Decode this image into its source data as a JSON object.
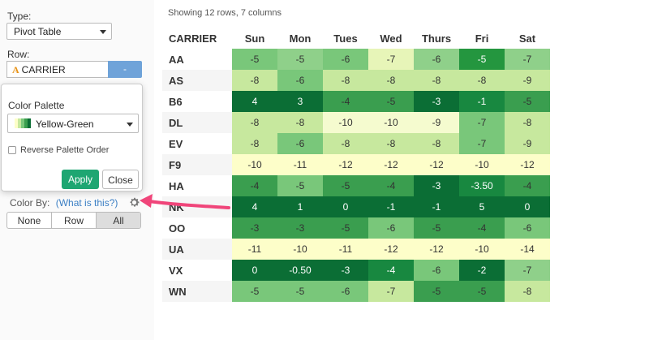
{
  "sidebar": {
    "type_label": "Type:",
    "type_value": "Pivot Table",
    "row_label": "Row:",
    "row_field_icon": "A",
    "row_field_value": "CARRIER",
    "row_remove_label": "-",
    "palette": {
      "title": "Color Palette",
      "selected": "Yellow-Green",
      "reverse_label": "Reverse Palette Order",
      "reverse_checked": false,
      "apply_label": "Apply",
      "close_label": "Close"
    },
    "color_by_label": "Color By:",
    "color_by_help": "(What is this?)",
    "color_by_options": [
      "None",
      "Row",
      "All"
    ],
    "color_by_selected": "All"
  },
  "main": {
    "status": "Showing 12 rows, 7 columns",
    "columns": [
      "CARRIER",
      "Sun",
      "Mon",
      "Tues",
      "Wed",
      "Thurs",
      "Fri",
      "Sat"
    ],
    "rows": [
      {
        "carrier": "AA",
        "cells": [
          "-5",
          "-5",
          "-6",
          "-7",
          "-6",
          "-5",
          "-7"
        ],
        "colors": [
          "#79c77a",
          "#8fd08a",
          "#79c77a",
          "#e7f5b8",
          "#8fd08a",
          "#24963f",
          "#8fd08a"
        ]
      },
      {
        "carrier": "AS",
        "cells": [
          "-8",
          "-6",
          "-8",
          "-8",
          "-8",
          "-8",
          "-9"
        ],
        "colors": [
          "#c7e89e",
          "#79c77a",
          "#c7e89e",
          "#c7e89e",
          "#c7e89e",
          "#c7e89e",
          "#c7e89e"
        ]
      },
      {
        "carrier": "B6",
        "cells": [
          "4",
          "3",
          "-4",
          "-5",
          "-3",
          "-1",
          "-5"
        ],
        "colors": [
          "#0b6e35",
          "#0b6e35",
          "#3a9e4f",
          "#3a9e4f",
          "#0b6e35",
          "#188840",
          "#3a9e4f"
        ]
      },
      {
        "carrier": "DL",
        "cells": [
          "-8",
          "-8",
          "-10",
          "-10",
          "-9",
          "-7",
          "-8"
        ],
        "colors": [
          "#c7e89e",
          "#c7e89e",
          "#f5fbcf",
          "#f5fbcf",
          "#f5fbcf",
          "#79c77a",
          "#c7e89e"
        ]
      },
      {
        "carrier": "EV",
        "cells": [
          "-8",
          "-6",
          "-8",
          "-8",
          "-8",
          "-7",
          "-9"
        ],
        "colors": [
          "#c7e89e",
          "#79c77a",
          "#c7e89e",
          "#c7e89e",
          "#c7e89e",
          "#79c77a",
          "#c7e89e"
        ]
      },
      {
        "carrier": "F9",
        "cells": [
          "-10",
          "-11",
          "-12",
          "-12",
          "-12",
          "-10",
          "-12"
        ],
        "colors": [
          "#fdfec9",
          "#fdfec9",
          "#fdfec9",
          "#fdfec9",
          "#fdfec9",
          "#fdfec9",
          "#fdfec9"
        ]
      },
      {
        "carrier": "HA",
        "cells": [
          "-4",
          "-5",
          "-5",
          "-4",
          "-3",
          "-3.50",
          "-4"
        ],
        "colors": [
          "#3a9e4f",
          "#79c77a",
          "#3a9e4f",
          "#3a9e4f",
          "#0b6e35",
          "#188840",
          "#3a9e4f"
        ]
      },
      {
        "carrier": "NK",
        "cells": [
          "4",
          "1",
          "0",
          "-1",
          "-1",
          "5",
          "0"
        ],
        "colors": [
          "#0b6e35",
          "#0b6e35",
          "#0b6e35",
          "#0b6e35",
          "#0b6e35",
          "#0b6e35",
          "#0b6e35"
        ]
      },
      {
        "carrier": "OO",
        "cells": [
          "-3",
          "-3",
          "-5",
          "-6",
          "-5",
          "-4",
          "-6"
        ],
        "colors": [
          "#3a9e4f",
          "#3a9e4f",
          "#3a9e4f",
          "#79c77a",
          "#3a9e4f",
          "#3a9e4f",
          "#79c77a"
        ]
      },
      {
        "carrier": "UA",
        "cells": [
          "-11",
          "-10",
          "-11",
          "-12",
          "-12",
          "-10",
          "-14"
        ],
        "colors": [
          "#fdfec9",
          "#fdfec9",
          "#fdfec9",
          "#fdfec9",
          "#fdfec9",
          "#fdfec9",
          "#fdfec9"
        ]
      },
      {
        "carrier": "VX",
        "cells": [
          "0",
          "-0.50",
          "-3",
          "-4",
          "-6",
          "-2",
          "-7"
        ],
        "colors": [
          "#0b6e35",
          "#0b6e35",
          "#0b6e35",
          "#188840",
          "#79c77a",
          "#0b6e35",
          "#8fd08a"
        ]
      },
      {
        "carrier": "WN",
        "cells": [
          "-5",
          "-5",
          "-6",
          "-7",
          "-5",
          "-5",
          "-8"
        ],
        "colors": [
          "#79c77a",
          "#79c77a",
          "#79c77a",
          "#c7e89e",
          "#3a9e4f",
          "#3a9e4f",
          "#c7e89e"
        ]
      }
    ]
  },
  "colors": {
    "accent_green": "#1ea672",
    "link_blue": "#3b7fc4",
    "remove_button": "#6fa3d9",
    "arrow_pink": "#f0457a"
  },
  "icons": [
    "type-a-icon",
    "caret-down-icon",
    "palette-swatch-icon",
    "gear-icon",
    "pointer-arrow-icon"
  ]
}
